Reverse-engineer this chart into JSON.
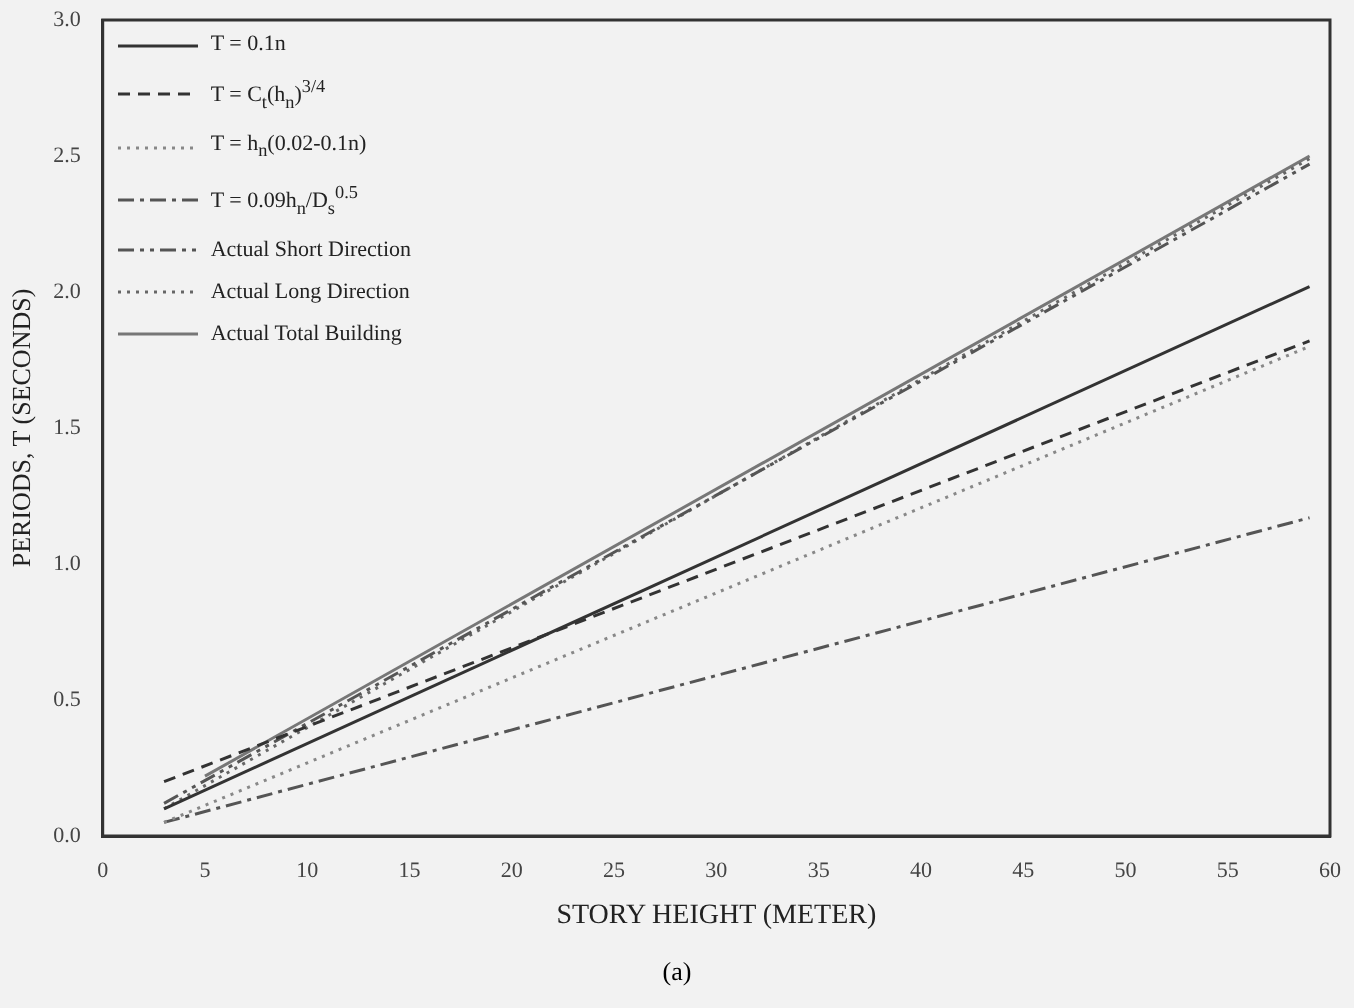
{
  "chart_data": {
    "type": "line",
    "xlabel": "STORY HEIGHT (METER)",
    "ylabel": "PERIODS, T (SECONDS)",
    "annotations": [
      "(a)"
    ],
    "xlim": [
      0,
      60
    ],
    "xticks": [
      0,
      5,
      10,
      15,
      20,
      25,
      30,
      35,
      40,
      45,
      50,
      55,
      60
    ],
    "ylim": [
      0,
      3
    ],
    "yticks": [
      {
        "value": 0,
        "label": "0.0"
      },
      {
        "value": 0.5,
        "label": "0.5"
      },
      {
        "value": 1,
        "label": "1.0"
      },
      {
        "value": 1.5,
        "label": "1.5"
      },
      {
        "value": 2,
        "label": "2.0"
      },
      {
        "value": 2.5,
        "label": "2.5"
      },
      {
        "value": 3,
        "label": "3.0"
      }
    ],
    "grid": false,
    "legend": "top left",
    "marker": "none",
    "series": [
      {
        "name": "T = 0.1n",
        "color": "#333333",
        "line_style": "solid",
        "x": [
          3,
          59
        ],
        "values": [
          0.1,
          2.02
        ]
      },
      {
        "name": "T = C$_{t}$(h$_{n}$)$^{3/4}$",
        "color": "#333333",
        "line_style": "dashed",
        "x": [
          3,
          59
        ],
        "values": [
          0.2,
          1.82
        ]
      },
      {
        "name": "T = h$_{n}$(0.02-0.1n)",
        "color": "#888888",
        "line_style": "dotted",
        "x": [
          3,
          59
        ],
        "values": [
          0.05,
          1.8
        ]
      },
      {
        "name": "T = 0.09h$_{n}$/D$_{s}$$^{0.5}$",
        "color": "#555555",
        "line_style": "dashdot",
        "x": [
          3,
          59
        ],
        "values": [
          0.05,
          1.17
        ]
      },
      {
        "name": "Actual Short Direction",
        "color": "#555555",
        "line_style": "dashdotdot",
        "x": [
          3,
          59
        ],
        "values": [
          0.12,
          2.47
        ]
      },
      {
        "name": "Actual Long Direction",
        "color": "#666666",
        "line_style": "dotted",
        "x": [
          3,
          59
        ],
        "values": [
          0.1,
          2.49
        ]
      },
      {
        "name": "Actual Total Building",
        "color": "#777777",
        "line_style": "solid",
        "x": [
          5,
          59
        ],
        "values": [
          0.22,
          2.5
        ]
      }
    ]
  }
}
